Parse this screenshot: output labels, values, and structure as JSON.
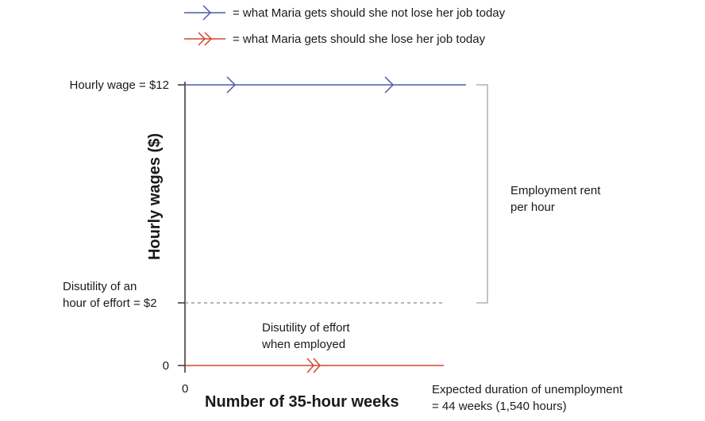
{
  "legend": {
    "blue_label": "= what Maria gets should she not lose her job today",
    "red_label": "= what Maria gets should she lose her job today"
  },
  "labels": {
    "wage": "Hourly wage = $12",
    "disutility_line1": "Disutility of an",
    "disutility_line2": "hour of effort = $2",
    "zero_y": "0",
    "zero_x": "0",
    "effort_line1": "Disutility of effort",
    "effort_line2": "when employed",
    "rent_line1": "Employment rent",
    "rent_line2": "per hour",
    "duration_line1": "Expected duration of unemployment",
    "duration_line2": "= 44 weeks (1,540 hours)"
  },
  "axes": {
    "ylabel": "Hourly wages ($)",
    "xlabel": "Number of 35-hour weeks"
  },
  "colors": {
    "blue": "#4a5ba8",
    "red": "#d2452f",
    "axis": "#333333",
    "dashed": "#888888",
    "bracket": "#b0b0b0"
  }
}
